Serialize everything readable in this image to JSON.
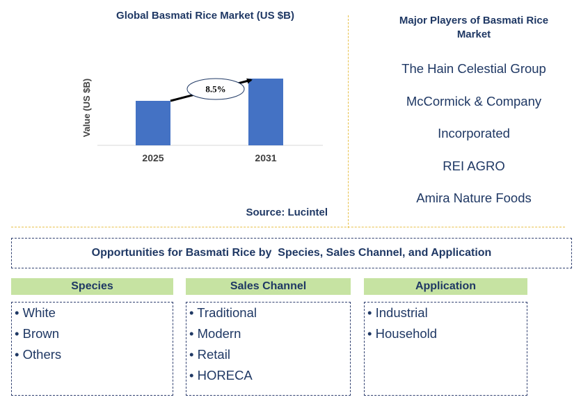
{
  "chart_data": {
    "type": "bar",
    "title": "Global Basmati Rice Market (US $B)",
    "ylabel": "Value (US $B)",
    "xlabel": "",
    "categories": [
      "2025",
      "2031"
    ],
    "values": [
      1.0,
      1.5
    ],
    "ylim": [
      0,
      1.5
    ],
    "annotation": "8.5%",
    "grid": false,
    "bar_color": "#4472c4"
  },
  "source": "Source: Lucintel",
  "players": {
    "title": "Major Players of Basmati Rice Market",
    "items": [
      "The Hain Celestial Group",
      "McCormick & Company",
      "Incorporated",
      "REI AGRO",
      "Amira Nature Foods"
    ]
  },
  "opportunities_title": "Opportunities for Basmati Rice by  Species, Sales Channel, and Application",
  "categories": [
    {
      "header": "Species",
      "items": [
        "White",
        "Brown",
        "Others"
      ]
    },
    {
      "header": "Sales Channel",
      "items": [
        "Traditional",
        "Modern",
        "Retail",
        "HORECA"
      ]
    },
    {
      "header": "Application",
      "items": [
        "Industrial",
        "Household"
      ]
    }
  ],
  "colors": {
    "text": "#1f3864",
    "header_bg": "#c6e3a2",
    "divider": "#e8c14a"
  }
}
